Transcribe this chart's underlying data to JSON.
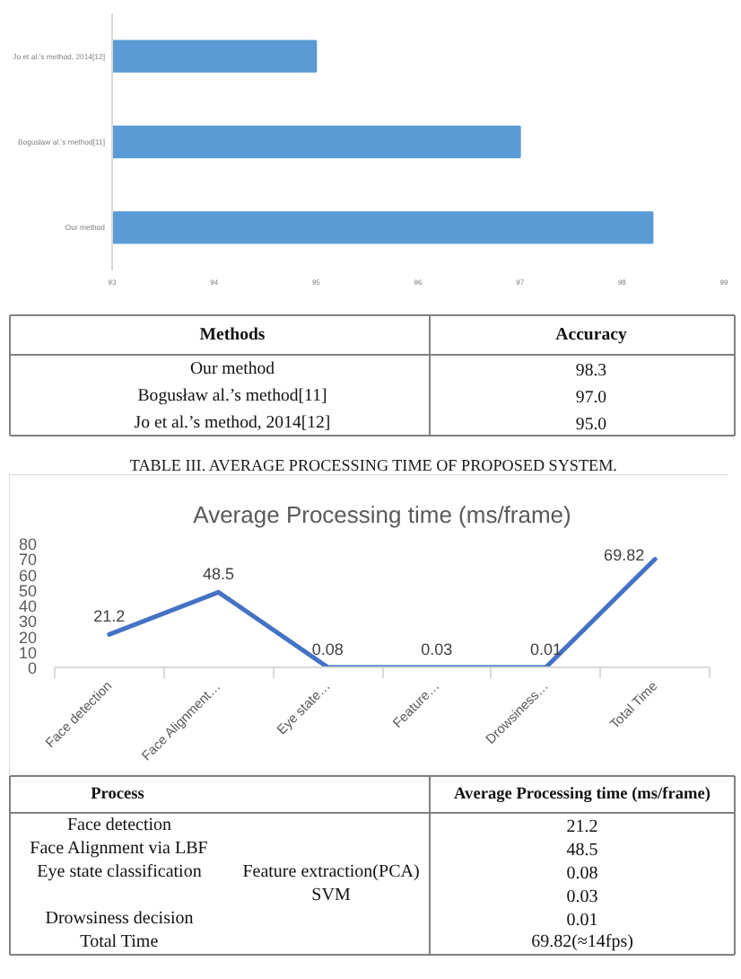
{
  "chart_data": [
    {
      "type": "bar",
      "orientation": "horizontal",
      "categories": [
        "Jo et al.’s method, 2014[12]",
        "Bogusław al.’s method[11]",
        "Our method"
      ],
      "values": [
        95.0,
        97.0,
        98.3
      ],
      "color": "#5b9bd5",
      "xlim": [
        93,
        99
      ],
      "xticks": [
        93,
        94,
        95,
        96,
        97,
        98,
        99
      ]
    },
    {
      "type": "other",
      "categories": [
        "Methods",
        "Accuracy"
      ],
      "y_categories": [
        "Our method",
        "Bogusław al.’s method[11]",
        "Jo et al.’s method, 2014[12]"
      ],
      "value_labels": [
        "98.3",
        "97.0",
        "95.0"
      ]
    },
    {
      "type": "line",
      "title": "Average Processing time (ms/frame)",
      "annotations": [
        "TABLE III. AVERAGE PROCESSING TIME OF PROPOSED SYSTEM."
      ],
      "categories": [
        "Face detection",
        "Face Alignment…",
        "Eye state…",
        "Feature…",
        "Drowsiness…",
        "Total Time"
      ],
      "values": [
        21.2,
        48.5,
        0.08,
        0.03,
        0.01,
        69.82
      ],
      "color": "#4472c4",
      "ylim": [
        0,
        80
      ],
      "yticks": [
        0,
        10,
        20,
        30,
        40,
        50,
        60,
        70,
        80
      ],
      "data_labels": true
    },
    {
      "type": "other",
      "categories": [
        "Process",
        "Average Processing time (ms/frame)"
      ],
      "y_categories": [
        "Face detection",
        "Face Alignment via LBF",
        "Eye state classification",
        null,
        "Drowsiness decision",
        "Total Time"
      ],
      "y2_categories": [
        null,
        null,
        "Feature extraction(PCA)",
        "SVM",
        null,
        null
      ],
      "value_labels": [
        "21.2",
        "48.5",
        "0.08",
        "0.03",
        "0.01",
        "69.82(≈14fps)"
      ]
    }
  ]
}
